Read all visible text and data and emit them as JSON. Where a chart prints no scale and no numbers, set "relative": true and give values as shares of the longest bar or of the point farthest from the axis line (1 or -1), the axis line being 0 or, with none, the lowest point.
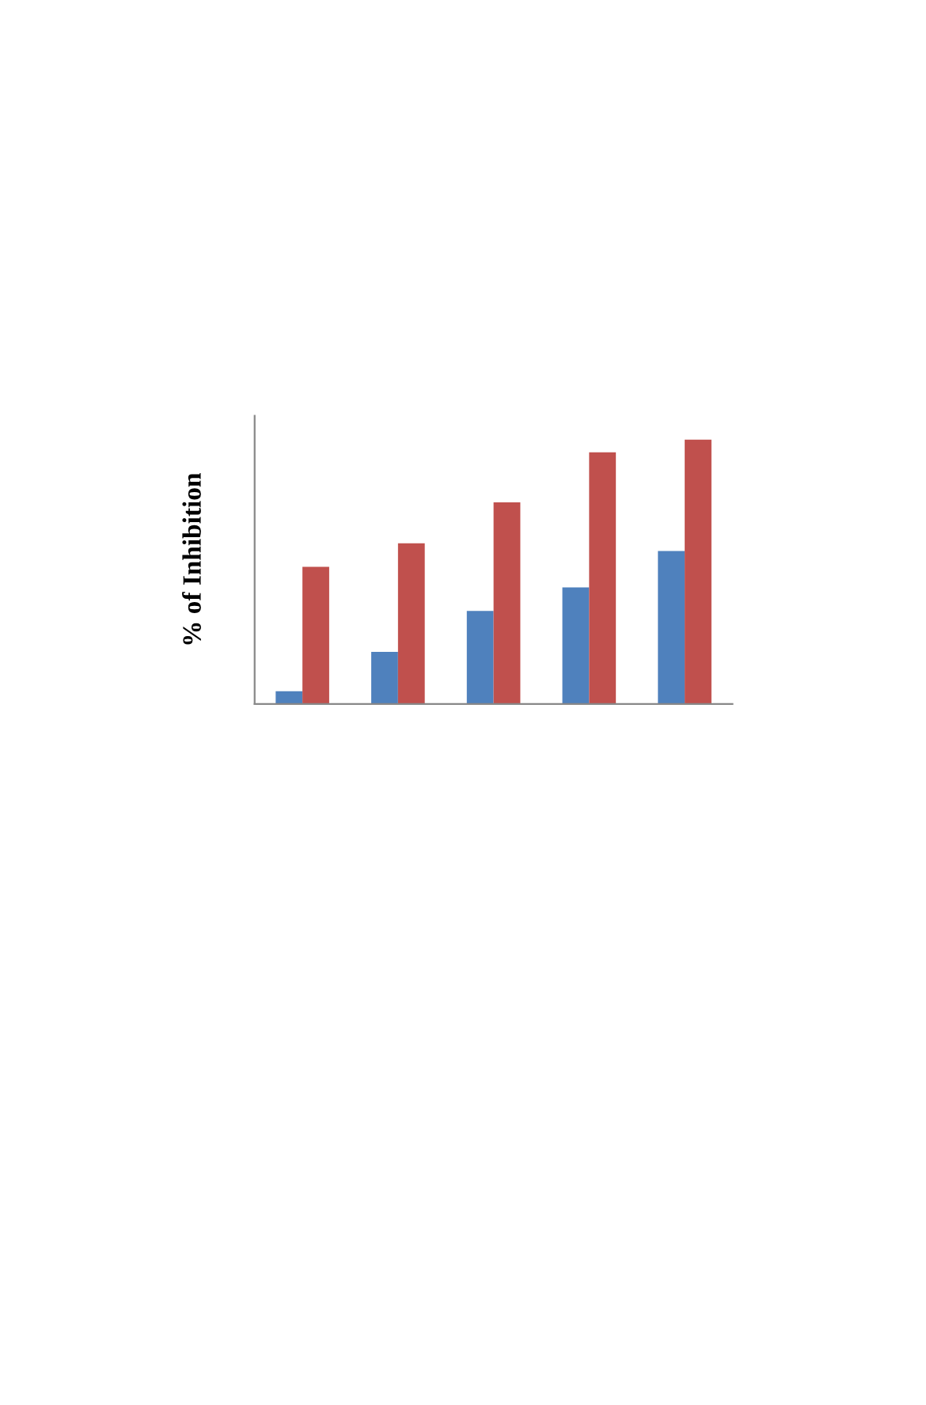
{
  "chart_data": {
    "type": "bar",
    "ylabel": "% of Inhibition",
    "relative": true,
    "categories": [
      null,
      null,
      null,
      null,
      null
    ],
    "series": [
      {
        "color": "#4f81bd",
        "values": [
          0.048,
          0.197,
          0.352,
          0.441,
          0.579
        ]
      },
      {
        "color": "#c0504d",
        "values": [
          0.519,
          0.608,
          0.763,
          0.952,
          1.0
        ]
      }
    ]
  }
}
